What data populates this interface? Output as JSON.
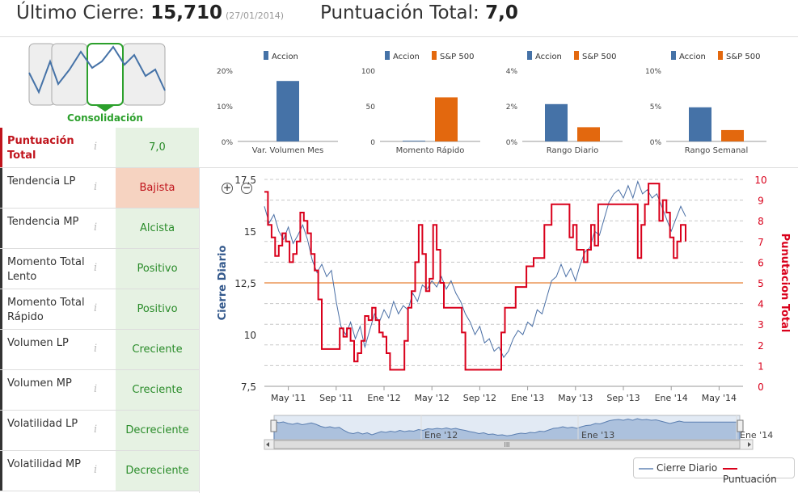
{
  "header": {
    "last_close_label": "Último Cierre:",
    "last_close_value": "15,710",
    "last_close_date": "(27/01/2014)",
    "total_score_label": "Puntuación Total:",
    "total_score_value": "7,0"
  },
  "pattern": {
    "label": "Consolidación",
    "accent": "#2ca02c"
  },
  "indicators": [
    {
      "label": "Puntuación Total",
      "value": "7,0",
      "kind": "score"
    },
    {
      "label": "Tendencia LP",
      "value": "Bajista",
      "kind": "bad"
    },
    {
      "label": "Tendencia MP",
      "value": "Alcista",
      "kind": "good"
    },
    {
      "label": "Momento Total Lento",
      "value": "Positivo",
      "kind": "good"
    },
    {
      "label": "Momento Total Rápido",
      "value": "Positivo",
      "kind": "good"
    },
    {
      "label": "Volumen LP",
      "value": "Creciente",
      "kind": "good"
    },
    {
      "label": "Volumen MP",
      "value": "Creciente",
      "kind": "good"
    },
    {
      "label": "Volatilidad LP",
      "value": "Decreciente",
      "kind": "good"
    },
    {
      "label": "Volatilidad MP",
      "value": "Decreciente",
      "kind": "good"
    }
  ],
  "info_glyph": "i",
  "colors": {
    "accion": "#4572a7",
    "sp500": "#e3680e",
    "cierre": "#4a6fa5",
    "puntuacion": "#d9001b",
    "level": "#f0b080"
  },
  "chart_data": [
    {
      "type": "bar",
      "legend": [
        "Accion"
      ],
      "categories": [
        "Var. Volumen Mes"
      ],
      "series": [
        {
          "name": "Accion",
          "values": [
            17
          ]
        }
      ],
      "ylim": [
        0,
        20
      ],
      "yticks": [
        "0%",
        "10%",
        "20%"
      ]
    },
    {
      "type": "bar",
      "legend": [
        "Accion",
        "S&P 500"
      ],
      "categories": [
        "Momento Rápido"
      ],
      "series": [
        {
          "name": "Accion",
          "values": [
            1
          ]
        },
        {
          "name": "S&P 500",
          "values": [
            62
          ]
        }
      ],
      "ylim": [
        0,
        100
      ],
      "yticks": [
        "0",
        "50",
        "100"
      ]
    },
    {
      "type": "bar",
      "legend": [
        "Accion",
        "S&P 500"
      ],
      "categories": [
        "Rango Diario"
      ],
      "series": [
        {
          "name": "Accion",
          "values": [
            2.1
          ]
        },
        {
          "name": "S&P 500",
          "values": [
            0.8
          ]
        }
      ],
      "ylim": [
        0,
        4
      ],
      "yticks": [
        "0%",
        "2%",
        "4%"
      ]
    },
    {
      "type": "bar",
      "legend": [
        "Accion",
        "S&P 500"
      ],
      "categories": [
        "Rango Semanal"
      ],
      "series": [
        {
          "name": "Accion",
          "values": [
            4.8
          ]
        },
        {
          "name": "S&P 500",
          "values": [
            1.6
          ]
        }
      ],
      "ylim": [
        0,
        10
      ],
      "yticks": [
        "0%",
        "5%",
        "10%"
      ]
    },
    {
      "type": "line",
      "ylabel": "Cierre Diario",
      "y2label": "Punutacion Total",
      "xticks": [
        "May '11",
        "Sep '11",
        "Ene '12",
        "May '12",
        "Sep '12",
        "Ene '13",
        "May '13",
        "Sep '13",
        "Ene '14",
        "May '14"
      ],
      "yticks": [
        "7,5",
        "10",
        "12,5",
        "15",
        "17,5"
      ],
      "y2ticks": [
        "0",
        "1",
        "2",
        "3",
        "4",
        "5",
        "6",
        "7",
        "8",
        "9",
        "10"
      ],
      "ylim": [
        7.5,
        17.5
      ],
      "y2lim": [
        0,
        10
      ],
      "xlim": [
        0,
        40
      ],
      "level_line": 12.5,
      "cierre": [
        [
          0,
          16.2
        ],
        [
          0.4,
          15.4
        ],
        [
          0.8,
          15.8
        ],
        [
          1.2,
          15.0
        ],
        [
          1.6,
          14.6
        ],
        [
          2,
          15.2
        ],
        [
          2.4,
          14.4
        ],
        [
          2.8,
          14.8
        ],
        [
          3.2,
          15.3
        ],
        [
          3.6,
          14.6
        ],
        [
          4,
          13.6
        ],
        [
          4.4,
          13.0
        ],
        [
          4.8,
          13.4
        ],
        [
          5.2,
          12.8
        ],
        [
          5.6,
          13.1
        ],
        [
          6,
          11.6
        ],
        [
          6.4,
          10.4
        ],
        [
          6.8,
          10.0
        ],
        [
          7.2,
          10.6
        ],
        [
          7.6,
          9.8
        ],
        [
          8,
          10.4
        ],
        [
          8.4,
          9.4
        ],
        [
          8.8,
          10.2
        ],
        [
          9.2,
          11.0
        ],
        [
          9.6,
          10.6
        ],
        [
          10,
          11.2
        ],
        [
          10.4,
          10.8
        ],
        [
          10.8,
          11.6
        ],
        [
          11.2,
          11.0
        ],
        [
          11.6,
          11.4
        ],
        [
          12,
          11.2
        ],
        [
          12.4,
          12.0
        ],
        [
          12.8,
          11.6
        ],
        [
          13.2,
          12.4
        ],
        [
          13.6,
          12.2
        ],
        [
          14,
          12.6
        ],
        [
          14.4,
          12.3
        ],
        [
          14.8,
          12.8
        ],
        [
          15.2,
          12.2
        ],
        [
          15.6,
          12.6
        ],
        [
          16,
          12.0
        ],
        [
          16.4,
          11.6
        ],
        [
          16.8,
          11.0
        ],
        [
          17.2,
          10.6
        ],
        [
          17.6,
          10.0
        ],
        [
          18,
          10.4
        ],
        [
          18.4,
          9.6
        ],
        [
          18.8,
          9.8
        ],
        [
          19.2,
          9.2
        ],
        [
          19.6,
          9.4
        ],
        [
          20,
          8.9
        ],
        [
          20.4,
          9.2
        ],
        [
          20.8,
          9.8
        ],
        [
          21.2,
          10.2
        ],
        [
          21.6,
          10.0
        ],
        [
          22,
          10.6
        ],
        [
          22.4,
          10.4
        ],
        [
          22.8,
          11.2
        ],
        [
          23.2,
          11.0
        ],
        [
          23.6,
          11.8
        ],
        [
          24,
          12.6
        ],
        [
          24.4,
          12.8
        ],
        [
          24.8,
          13.4
        ],
        [
          25.2,
          12.8
        ],
        [
          25.6,
          13.2
        ],
        [
          26,
          12.6
        ],
        [
          26.4,
          13.4
        ],
        [
          26.8,
          14.0
        ],
        [
          27.2,
          14.2
        ],
        [
          27.6,
          15.0
        ],
        [
          28,
          14.8
        ],
        [
          28.4,
          15.6
        ],
        [
          28.8,
          16.4
        ],
        [
          29.2,
          16.8
        ],
        [
          29.6,
          17.0
        ],
        [
          30,
          16.6
        ],
        [
          30.4,
          17.2
        ],
        [
          30.8,
          16.6
        ],
        [
          31.2,
          17.4
        ],
        [
          31.6,
          16.8
        ],
        [
          32,
          17.0
        ],
        [
          32.4,
          16.6
        ],
        [
          32.8,
          16.8
        ],
        [
          33.2,
          16.2
        ],
        [
          33.6,
          15.6
        ],
        [
          34,
          15.0
        ],
        [
          34.4,
          15.6
        ],
        [
          34.8,
          16.2
        ],
        [
          35.2,
          15.71
        ]
      ],
      "puntuacion": [
        [
          0,
          9.4
        ],
        [
          0.3,
          7.8
        ],
        [
          0.6,
          7.2
        ],
        [
          0.9,
          6.3
        ],
        [
          1.2,
          6.8
        ],
        [
          1.5,
          7.4
        ],
        [
          1.8,
          7.0
        ],
        [
          2.1,
          6.0
        ],
        [
          2.4,
          6.4
        ],
        [
          2.7,
          7.0
        ],
        [
          3.0,
          8.4
        ],
        [
          3.3,
          8.0
        ],
        [
          3.6,
          7.4
        ],
        [
          3.9,
          6.4
        ],
        [
          4.2,
          5.6
        ],
        [
          4.5,
          4.2
        ],
        [
          4.8,
          1.8
        ],
        [
          5.1,
          1.8
        ],
        [
          6.0,
          1.8
        ],
        [
          6.3,
          2.8
        ],
        [
          6.6,
          2.4
        ],
        [
          6.9,
          2.8
        ],
        [
          7.2,
          2.2
        ],
        [
          7.5,
          1.2
        ],
        [
          7.8,
          1.6
        ],
        [
          8.1,
          2.2
        ],
        [
          8.4,
          3.4
        ],
        [
          8.7,
          3.2
        ],
        [
          9.0,
          3.8
        ],
        [
          9.3,
          3.2
        ],
        [
          9.6,
          2.6
        ],
        [
          9.9,
          2.4
        ],
        [
          10.2,
          1.6
        ],
        [
          10.5,
          0.8
        ],
        [
          11.4,
          0.8
        ],
        [
          11.7,
          2.2
        ],
        [
          12.0,
          3.8
        ],
        [
          12.3,
          4.6
        ],
        [
          12.6,
          6.0
        ],
        [
          12.9,
          7.8
        ],
        [
          13.2,
          6.4
        ],
        [
          13.5,
          4.6
        ],
        [
          13.8,
          5.2
        ],
        [
          14.1,
          7.8
        ],
        [
          14.4,
          6.6
        ],
        [
          14.7,
          5.0
        ],
        [
          15.0,
          3.8
        ],
        [
          15.3,
          3.8
        ],
        [
          16.2,
          3.8
        ],
        [
          16.5,
          2.6
        ],
        [
          16.8,
          0.8
        ],
        [
          17.7,
          0.8
        ],
        [
          18.6,
          0.8
        ],
        [
          19.5,
          0.8
        ],
        [
          19.8,
          2.6
        ],
        [
          20.1,
          3.8
        ],
        [
          20.7,
          3.8
        ],
        [
          21.0,
          4.8
        ],
        [
          21.6,
          4.8
        ],
        [
          21.9,
          5.8
        ],
        [
          22.2,
          5.8
        ],
        [
          22.5,
          6.2
        ],
        [
          23.1,
          6.2
        ],
        [
          23.4,
          7.8
        ],
        [
          24.0,
          8.8
        ],
        [
          25.2,
          8.8
        ],
        [
          25.5,
          7.2
        ],
        [
          25.8,
          7.8
        ],
        [
          26.1,
          6.6
        ],
        [
          26.7,
          6.0
        ],
        [
          27.0,
          6.6
        ],
        [
          27.3,
          7.8
        ],
        [
          27.6,
          6.8
        ],
        [
          27.9,
          8.8
        ],
        [
          28.8,
          8.8
        ],
        [
          29.1,
          8.8
        ],
        [
          30.9,
          8.8
        ],
        [
          31.2,
          6.2
        ],
        [
          31.5,
          7.8
        ],
        [
          31.8,
          8.8
        ],
        [
          32.1,
          9.8
        ],
        [
          32.7,
          9.8
        ],
        [
          33.0,
          8.0
        ],
        [
          33.3,
          9.0
        ],
        [
          33.6,
          8.4
        ],
        [
          33.9,
          7.2
        ],
        [
          34.2,
          6.2
        ],
        [
          34.5,
          7.0
        ],
        [
          34.8,
          7.8
        ],
        [
          35.2,
          7.0
        ]
      ],
      "navigator": {
        "xticks": [
          "Ene '12",
          "Ene '13",
          "Ene '14"
        ]
      }
    }
  ],
  "legend": {
    "cierre": "Cierre Diario",
    "puntuacion": "Puntuación"
  },
  "scrollbar_grip": "III",
  "zoom": {
    "in": "+",
    "out": "−"
  }
}
